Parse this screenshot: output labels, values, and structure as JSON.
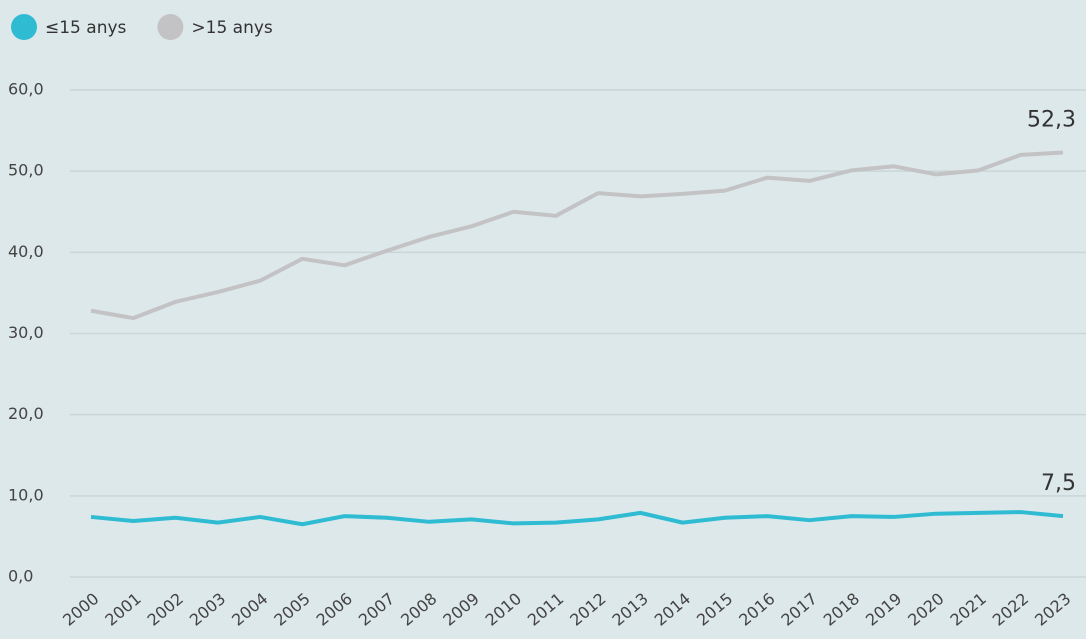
{
  "chart_data": {
    "type": "line",
    "categories": [
      "2000",
      "2001",
      "2002",
      "2003",
      "2004",
      "2005",
      "2006",
      "2007",
      "2008",
      "2009",
      "2010",
      "2011",
      "2012",
      "2013",
      "2014",
      "2015",
      "2016",
      "2017",
      "2018",
      "2019",
      "2020",
      "2021",
      "2022",
      "2023"
    ],
    "series": [
      {
        "name": "≤15 anys",
        "color": "#2fbcd3",
        "values": [
          7.4,
          6.9,
          7.3,
          6.7,
          7.4,
          6.5,
          7.5,
          7.3,
          6.8,
          7.1,
          6.6,
          6.7,
          7.1,
          7.9,
          6.7,
          7.3,
          7.5,
          7.0,
          7.5,
          7.4,
          7.8,
          7.9,
          8.0,
          7.5
        ],
        "value_labels": [
          null,
          null,
          null,
          null,
          null,
          null,
          null,
          null,
          null,
          null,
          null,
          null,
          null,
          null,
          null,
          null,
          null,
          null,
          null,
          null,
          null,
          null,
          null,
          "7,5"
        ]
      },
      {
        "name": ">15 anys",
        "color": "#c3c3c5",
        "values": [
          32.8,
          31.9,
          33.9,
          35.1,
          36.5,
          39.2,
          38.4,
          40.2,
          41.9,
          43.2,
          45.0,
          44.5,
          47.3,
          46.9,
          47.2,
          47.6,
          49.2,
          48.8,
          50.1,
          50.6,
          49.6,
          50.1,
          52.0,
          52.3
        ],
        "value_labels": [
          null,
          null,
          null,
          null,
          null,
          null,
          null,
          null,
          null,
          null,
          null,
          null,
          null,
          null,
          null,
          null,
          null,
          null,
          null,
          null,
          null,
          null,
          null,
          "52,3"
        ]
      }
    ],
    "ylim": [
      0,
      60
    ],
    "yticks": [
      {
        "value": 0,
        "label": "0,0"
      },
      {
        "value": 10,
        "label": "10,0"
      },
      {
        "value": 20,
        "label": "20,0"
      },
      {
        "value": 30,
        "label": "30,0"
      },
      {
        "value": 40,
        "label": "40,0"
      },
      {
        "value": 50,
        "label": "50,0"
      },
      {
        "value": 60,
        "label": "60,0"
      }
    ],
    "grid": true,
    "legend": "top-left"
  }
}
